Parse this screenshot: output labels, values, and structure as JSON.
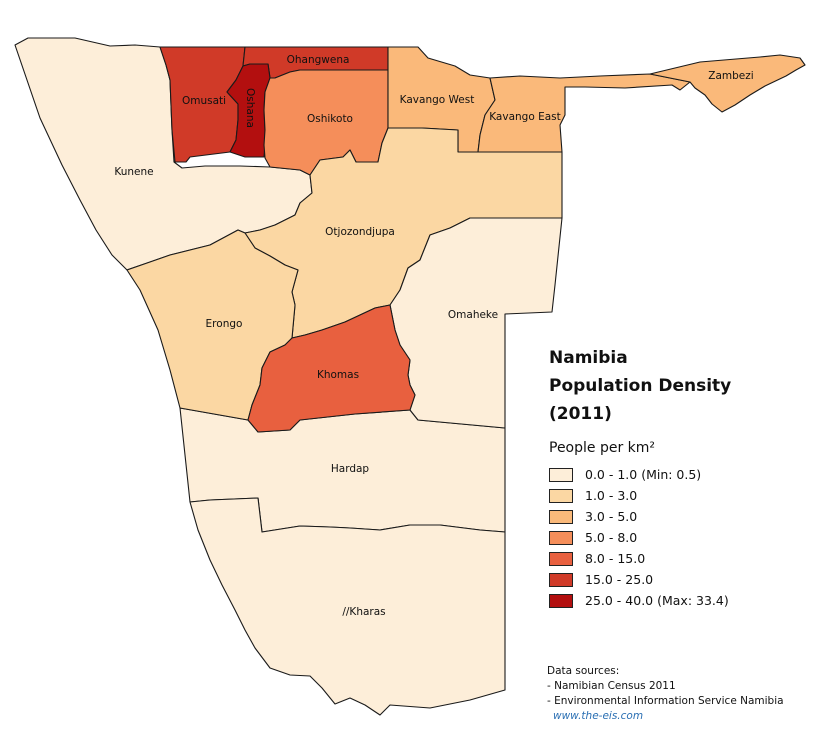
{
  "map": {
    "title_lines": [
      "Namibia",
      "Population Density",
      "(2011)"
    ],
    "legend_title": "People per km²",
    "legend": [
      {
        "label": "0.0 - 1.0 (Min: 0.5)",
        "color": "#fdeed9"
      },
      {
        "label": "1.0 - 3.0",
        "color": "#fbd7a3"
      },
      {
        "label": "3.0 - 5.0",
        "color": "#fab97a"
      },
      {
        "label": "5.0 - 8.0",
        "color": "#f58e5a"
      },
      {
        "label": "8.0 - 15.0",
        "color": "#e8603f"
      },
      {
        "label": "15.0 - 25.0",
        "color": "#d03a28"
      },
      {
        "label": "25.0 - 40.0 (Max: 33.4)",
        "color": "#b30f0f"
      }
    ],
    "regions": {
      "kunene": {
        "name": "Kunene",
        "color": "#fdeed9"
      },
      "omusati": {
        "name": "Omusati",
        "color": "#d03a28"
      },
      "ohangwena": {
        "name": "Ohangwena",
        "color": "#d03a28"
      },
      "oshana": {
        "name": "Oshana",
        "color": "#b30f0f"
      },
      "oshikoto": {
        "name": "Oshikoto",
        "color": "#f58e5a"
      },
      "kavango_west": {
        "name": "Kavango West",
        "color": "#fab97a"
      },
      "kavango_east": {
        "name": "Kavango East",
        "color": "#fab97a"
      },
      "zambezi": {
        "name": "Zambezi",
        "color": "#fab97a"
      },
      "otjozondjupa": {
        "name": "Otjozondjupa",
        "color": "#fbd7a3"
      },
      "erongo": {
        "name": "Erongo",
        "color": "#fbd7a3"
      },
      "omaheke": {
        "name": "Omaheke",
        "color": "#fdeed9"
      },
      "khomas": {
        "name": "Khomas",
        "color": "#e8603f"
      },
      "hardap": {
        "name": "Hardap",
        "color": "#fdeed9"
      },
      "kharas": {
        "name": "//Kharas",
        "color": "#fdeed9"
      }
    },
    "sources": {
      "heading": "Data sources:",
      "lines": [
        "- Namibian Census 2011",
        "- Environmental Information Service Namibia"
      ],
      "url": "www.the-eis.com"
    }
  }
}
